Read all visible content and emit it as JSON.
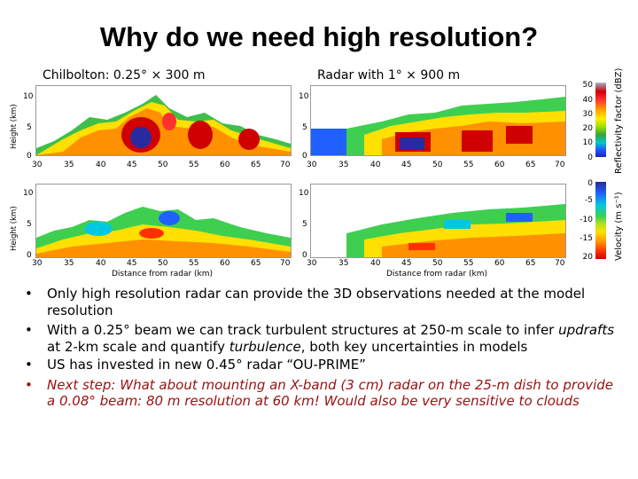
{
  "title": "Why do we need high resolution?",
  "panels": {
    "left_title": "Chilbolton: 0.25° × 300 m",
    "right_title": "Radar with 1° × 900 m",
    "y_label": "Height (km)",
    "x_label": "Distance from radar (km)",
    "y_ticks": [
      "10",
      "5",
      "0"
    ],
    "x_ticks": [
      "30",
      "35",
      "40",
      "45",
      "50",
      "55",
      "60",
      "65",
      "70"
    ]
  },
  "colorbars": {
    "reflectivity_label": "Reflectivity factor (dBZ)",
    "reflectivity_ticks": [
      "50",
      "40",
      "30",
      "20",
      "10",
      "0"
    ],
    "velocity_label": "Velocity (m s⁻¹)",
    "velocity_ticks": [
      "0",
      "-5",
      "-10",
      "-15",
      "20"
    ],
    "colors": {
      "high": "#d00000",
      "mid": "#ffe000",
      "low": "#1e60ff",
      "min": "#2020c0"
    }
  },
  "bullets": {
    "b1": "Only high resolution radar can provide the 3D observations needed at the model resolution",
    "b2_a": "With a 0.25° beam we can track turbulent structures at 250-m scale to infer ",
    "b2_b": "updrafts",
    "b2_c": " at 2-km scale and quantify ",
    "b2_d": "turbulence",
    "b2_e": ", both key uncertainties in models",
    "b3": "US has invested in new 0.45° radar “OU-PRIME”",
    "b4": "Next step: What about mounting an X-band (3 cm) radar on the 25-m dish to provide a 0.08° beam: 80 m resolution at 60 km! Would also be very sensitive to clouds"
  }
}
